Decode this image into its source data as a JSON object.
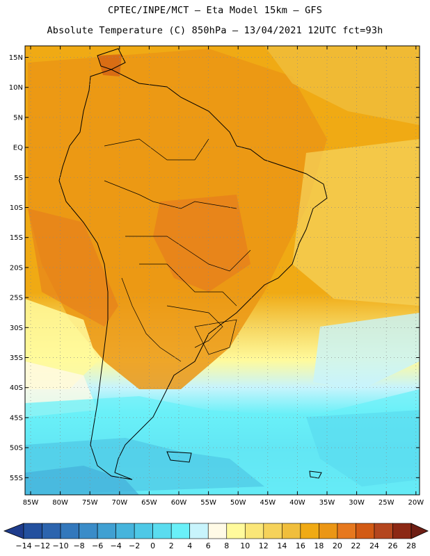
{
  "title_line1": "CPTEC/INPE/MCT –  Eta Model 15km – GFS",
  "title_line2": "Absolute Temperature (C) 850hPa – 13/04/2021 12UTC fct=93h",
  "map": {
    "lat_labels": [
      "15N",
      "10N",
      "5N",
      "EQ",
      "5S",
      "10S",
      "15S",
      "20S",
      "25S",
      "30S",
      "35S",
      "40S",
      "45S",
      "50S",
      "55S"
    ],
    "lon_labels": [
      "85W",
      "80W",
      "75W",
      "70W",
      "65W",
      "60W",
      "55W",
      "50W",
      "45W",
      "40W",
      "35W",
      "30W",
      "25W",
      "20W"
    ]
  },
  "colorbar": {
    "labels": [
      "-14",
      "-12",
      "-10",
      "-8",
      "-6",
      "-4",
      "-2",
      "0",
      "2",
      "4",
      "6",
      "8",
      "10",
      "12",
      "14",
      "16",
      "18",
      "20",
      "22",
      "24",
      "26",
      "28"
    ],
    "colors": [
      "#1e3c8c",
      "#23509e",
      "#2c64ae",
      "#3378bc",
      "#3a8cc8",
      "#40a0d2",
      "#46b4dc",
      "#4ec8e6",
      "#5adcef",
      "#6af0f8",
      "#c8f4fc",
      "#fffae6",
      "#fffa9c",
      "#fae678",
      "#f5d25a",
      "#f0be3c",
      "#f0aa14",
      "#eb9614",
      "#e6781e",
      "#d25a14",
      "#b4461e",
      "#8c2814",
      "#6e1e14"
    ]
  }
}
